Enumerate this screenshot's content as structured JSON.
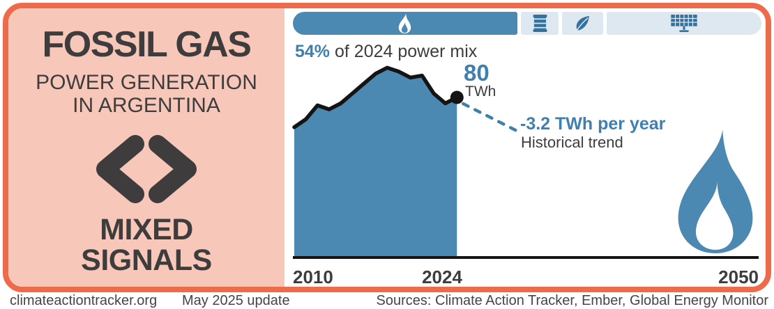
{
  "colors": {
    "border_orange": "#ed6a4a",
    "panel_salmon": "#f7c8ba",
    "dark_text": "#3e3c3c",
    "blue": "#4c89b2",
    "blue_text": "#3f80ae",
    "light_blue": "#dde8f0",
    "icon_blue": "#35719f",
    "line_black": "#141414"
  },
  "left_panel": {
    "title": "FOSSIL GAS",
    "subtitle_line1": "POWER GENERATION",
    "subtitle_line2": "IN ARGENTINA",
    "verdict_icon": "angle-brackets",
    "verdict_line1": "MIXED",
    "verdict_line2": "SIGNALS"
  },
  "power_mix_bar": {
    "year": 2024,
    "caption_highlight": "54%",
    "caption_rest": " of 2024 power mix",
    "segments": [
      {
        "name": "fossil-gas",
        "icon": "flame-icon",
        "share_pct": 54
      },
      {
        "name": "oil",
        "icon": "oil-barrel-icon",
        "share_pct": 6
      },
      {
        "name": "bio-leaf",
        "icon": "leaf-icon",
        "share_pct": 6
      },
      {
        "name": "solar",
        "icon": "solar-panel-icon",
        "share_pct": 32
      }
    ]
  },
  "chart_data": {
    "type": "area",
    "title": "Fossil gas power generation in Argentina",
    "unit": "TWh",
    "x": [
      2010,
      2011,
      2012,
      2013,
      2014,
      2015,
      2016,
      2017,
      2018,
      2019,
      2020,
      2021,
      2022,
      2023,
      2024
    ],
    "values": [
      65,
      69,
      76,
      74,
      77,
      82,
      87,
      92,
      95,
      93,
      90,
      91,
      82,
      77,
      80
    ],
    "x_axis_range": [
      2010,
      2050
    ],
    "xlabel_ticks": [
      "2010",
      "2024",
      "2050"
    ],
    "grid": false,
    "endpoint": {
      "year": 2024,
      "value": 80,
      "value_label": "80",
      "unit_label": "TWh"
    },
    "trend": {
      "label": "-3.2 TWh per year",
      "name": "Historical trend",
      "slope_twh_per_year": -3.2
    }
  },
  "footer": {
    "site": "climateactiontracker.org",
    "update": "May 2025 update",
    "sources": "Sources: Climate Action Tracker, Ember, Global Energy Monitor"
  }
}
